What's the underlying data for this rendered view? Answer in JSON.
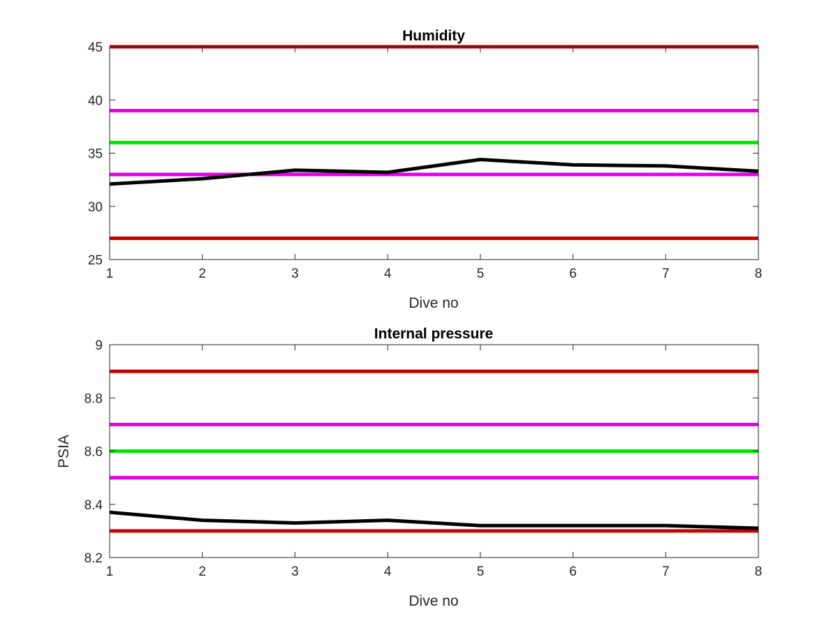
{
  "chart_data": [
    {
      "type": "line",
      "title": "Humidity",
      "xlabel": "Dive no",
      "ylabel": "",
      "xlim": [
        1,
        8
      ],
      "ylim": [
        25,
        45
      ],
      "x_ticks": [
        1,
        2,
        3,
        4,
        5,
        6,
        7,
        8
      ],
      "y_ticks": [
        25,
        30,
        35,
        40,
        45
      ],
      "grid": false,
      "series": [
        {
          "color": "#000000",
          "x": [
            1,
            2,
            3,
            4,
            5,
            6,
            7,
            8
          ],
          "values": [
            32.1,
            32.6,
            33.4,
            33.2,
            34.4,
            33.9,
            33.8,
            33.3
          ]
        }
      ],
      "reference_lines": [
        {
          "y": 45,
          "color": "#cc0000"
        },
        {
          "y": 39,
          "color": "#e600e6"
        },
        {
          "y": 36,
          "color": "#00e600"
        },
        {
          "y": 33,
          "color": "#e600e6"
        },
        {
          "y": 27,
          "color": "#cc0000"
        }
      ]
    },
    {
      "type": "line",
      "title": "Internal pressure",
      "xlabel": "Dive no",
      "ylabel": "PSIA",
      "xlim": [
        1,
        8
      ],
      "ylim": [
        8.2,
        9
      ],
      "x_ticks": [
        1,
        2,
        3,
        4,
        5,
        6,
        7,
        8
      ],
      "y_ticks": [
        8.2,
        8.4,
        8.6,
        8.8,
        9
      ],
      "grid": false,
      "series": [
        {
          "color": "#000000",
          "x": [
            1,
            2,
            3,
            4,
            5,
            6,
            7,
            8
          ],
          "values": [
            8.37,
            8.34,
            8.33,
            8.34,
            8.32,
            8.32,
            8.32,
            8.31
          ]
        }
      ],
      "reference_lines": [
        {
          "y": 8.9,
          "color": "#cc0000"
        },
        {
          "y": 8.7,
          "color": "#e600e6"
        },
        {
          "y": 8.6,
          "color": "#00e600"
        },
        {
          "y": 8.5,
          "color": "#e600e6"
        },
        {
          "y": 8.3,
          "color": "#cc0000"
        }
      ]
    }
  ]
}
